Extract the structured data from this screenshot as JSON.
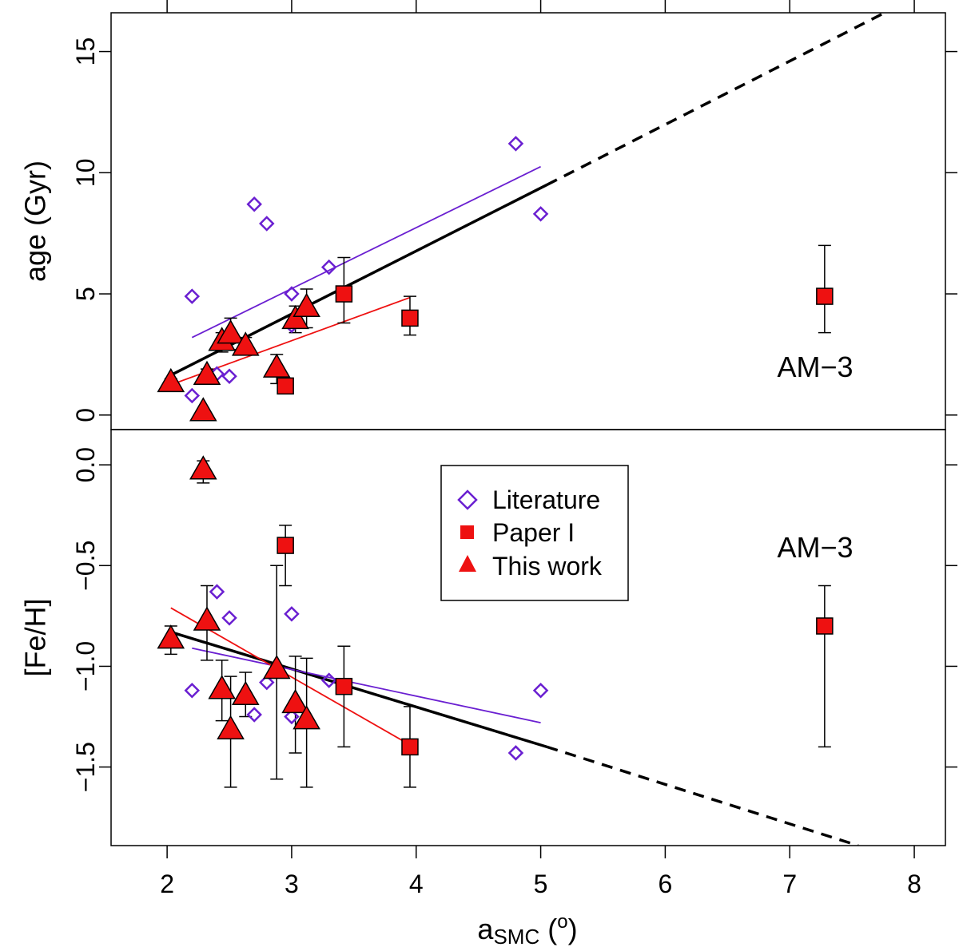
{
  "chart_data": {
    "type": "scatter",
    "x_axis": {
      "label_main": "a",
      "label_sub": "SMC",
      "label_unit_open": " (",
      "label_unit_sup": "o",
      "label_unit_close": ")",
      "range": [
        1.55,
        8.25
      ],
      "ticks": [
        "2",
        "3",
        "4",
        "5",
        "6",
        "7",
        "8"
      ],
      "tick_values": [
        2,
        3,
        4,
        5,
        6,
        7,
        8
      ]
    },
    "panels": [
      {
        "id": "top",
        "ylabel": "age (Gyr)",
        "ylim": [
          -0.6,
          16.6
        ],
        "yticks": [
          "0",
          "5",
          "10",
          "15"
        ],
        "ytick_values": [
          0,
          5,
          10,
          15
        ],
        "annotation": "AM−3",
        "series": [
          {
            "name": "Literature",
            "marker": "diamond",
            "color": "#6a1fd1",
            "points": [
              {
                "x": 2.2,
                "y": 4.9
              },
              {
                "x": 2.2,
                "y": 0.8
              },
              {
                "x": 2.4,
                "y": 1.7
              },
              {
                "x": 2.5,
                "y": 1.6
              },
              {
                "x": 2.7,
                "y": 8.7
              },
              {
                "x": 2.8,
                "y": 7.9
              },
              {
                "x": 3.0,
                "y": 5.0
              },
              {
                "x": 3.0,
                "y": 3.7
              },
              {
                "x": 3.3,
                "y": 6.1
              },
              {
                "x": 4.8,
                "y": 11.2
              },
              {
                "x": 5.0,
                "y": 8.3
              }
            ]
          },
          {
            "name": "Paper I",
            "marker": "square",
            "color": "#ee1111",
            "points": [
              {
                "x": 2.95,
                "y": 1.2,
                "lo": 1.0,
                "hi": 1.5
              },
              {
                "x": 3.42,
                "y": 5.0,
                "lo": 3.8,
                "hi": 6.5
              },
              {
                "x": 3.95,
                "y": 4.0,
                "lo": 3.3,
                "hi": 4.9
              },
              {
                "x": 7.28,
                "y": 4.9,
                "lo": 3.4,
                "hi": 7.0
              }
            ]
          },
          {
            "name": "This work",
            "marker": "triangle",
            "color": "#ee1111",
            "points": [
              {
                "x": 2.03,
                "y": 1.3,
                "lo": 1.1,
                "hi": 1.5
              },
              {
                "x": 2.29,
                "y": 0.1,
                "lo": 0.0,
                "hi": 0.2
              },
              {
                "x": 2.32,
                "y": 1.6,
                "lo": 1.3,
                "hi": 1.9
              },
              {
                "x": 2.44,
                "y": 3.0,
                "lo": 2.6,
                "hi": 3.4
              },
              {
                "x": 2.51,
                "y": 3.3,
                "lo": 2.7,
                "hi": 4.0
              },
              {
                "x": 2.63,
                "y": 2.8,
                "lo": 2.5,
                "hi": 3.2
              },
              {
                "x": 2.88,
                "y": 1.9,
                "lo": 1.3,
                "hi": 2.5
              },
              {
                "x": 3.03,
                "y": 3.9,
                "lo": 3.4,
                "hi": 4.5
              },
              {
                "x": 3.12,
                "y": 4.4,
                "lo": 3.6,
                "hi": 5.2
              }
            ]
          }
        ],
        "fits": [
          {
            "name": "combined fit",
            "color": "#000000",
            "width": 3.5,
            "dashed": false,
            "x": [
              2.05,
              5.05
            ],
            "y": [
              1.7,
              9.5
            ]
          },
          {
            "name": "combined fit extrapolation",
            "color": "#000000",
            "width": 3.5,
            "dashed": true,
            "x": [
              5.05,
              7.8
            ],
            "y": [
              9.5,
              16.7
            ]
          },
          {
            "name": "literature fit",
            "color": "#6a1fd1",
            "width": 1.8,
            "dashed": false,
            "x": [
              2.2,
              5.0
            ],
            "y": [
              3.2,
              10.25
            ]
          },
          {
            "name": "this work fit",
            "color": "#ee1111",
            "width": 1.8,
            "dashed": false,
            "x": [
              2.03,
              3.95
            ],
            "y": [
              1.25,
              4.85
            ]
          }
        ]
      },
      {
        "id": "bottom",
        "ylabel": "[Fe/H]",
        "ylim": [
          -1.89,
          0.175
        ],
        "yticks": [
          "−1.5",
          "−1.0",
          "−0.5",
          "0.0"
        ],
        "ytick_values": [
          -1.5,
          -1.0,
          -0.5,
          0.0
        ],
        "annotation": "AM−3",
        "series": [
          {
            "name": "Literature",
            "marker": "diamond",
            "color": "#6a1fd1",
            "points": [
              {
                "x": 2.2,
                "y": -1.12
              },
              {
                "x": 2.4,
                "y": -0.63
              },
              {
                "x": 2.5,
                "y": -0.76
              },
              {
                "x": 2.7,
                "y": -1.24
              },
              {
                "x": 2.8,
                "y": -1.08
              },
              {
                "x": 3.0,
                "y": -0.74
              },
              {
                "x": 3.0,
                "y": -1.25
              },
              {
                "x": 3.3,
                "y": -1.07
              },
              {
                "x": 4.8,
                "y": -1.43
              },
              {
                "x": 5.0,
                "y": -1.12
              }
            ]
          },
          {
            "name": "Paper I",
            "marker": "square",
            "color": "#ee1111",
            "points": [
              {
                "x": 2.95,
                "y": -0.4,
                "lo": -0.6,
                "hi": -0.3
              },
              {
                "x": 3.42,
                "y": -1.1,
                "lo": -1.4,
                "hi": -0.9
              },
              {
                "x": 3.95,
                "y": -1.4,
                "lo": -1.6,
                "hi": -1.2
              },
              {
                "x": 7.28,
                "y": -0.8,
                "lo": -1.4,
                "hi": -0.6
              }
            ]
          },
          {
            "name": "This work",
            "marker": "triangle",
            "color": "#ee1111",
            "points": [
              {
                "x": 2.03,
                "y": -0.87,
                "lo": -0.94,
                "hi": -0.8
              },
              {
                "x": 2.29,
                "y": -0.03,
                "lo": -0.09,
                "hi": 0.02
              },
              {
                "x": 2.32,
                "y": -0.78,
                "lo": -0.97,
                "hi": -0.6
              },
              {
                "x": 2.44,
                "y": -1.12,
                "lo": -1.27,
                "hi": -0.97
              },
              {
                "x": 2.51,
                "y": -1.32,
                "lo": -1.6,
                "hi": -1.05
              },
              {
                "x": 2.63,
                "y": -1.15,
                "lo": -1.25,
                "hi": -1.03
              },
              {
                "x": 2.88,
                "y": -1.02,
                "lo": -1.56,
                "hi": -0.5
              },
              {
                "x": 3.03,
                "y": -1.19,
                "lo": -1.43,
                "hi": -0.95
              },
              {
                "x": 3.12,
                "y": -1.27,
                "lo": -1.6,
                "hi": -0.96
              }
            ]
          }
        ],
        "fits": [
          {
            "name": "combined fit",
            "color": "#000000",
            "width": 3.5,
            "dashed": false,
            "x": [
              2.03,
              5.05
            ],
            "y": [
              -0.83,
              -1.4
            ]
          },
          {
            "name": "combined fit extrapolation",
            "color": "#000000",
            "width": 3.5,
            "dashed": true,
            "x": [
              5.05,
              7.55
            ],
            "y": [
              -1.4,
              -1.89
            ]
          },
          {
            "name": "literature fit",
            "color": "#6a1fd1",
            "width": 1.8,
            "dashed": false,
            "x": [
              2.2,
              5.0
            ],
            "y": [
              -0.91,
              -1.28
            ]
          },
          {
            "name": "this work fit",
            "color": "#ee1111",
            "width": 1.8,
            "dashed": false,
            "x": [
              2.03,
              3.95
            ],
            "y": [
              -0.71,
              -1.39
            ]
          }
        ]
      }
    ],
    "legend": {
      "placement": "bottom panel, upper center",
      "entries": [
        {
          "label": "Literature",
          "marker": "diamond",
          "color": "#6a1fd1"
        },
        {
          "label": "Paper I",
          "marker": "square",
          "color": "#ee1111"
        },
        {
          "label": "This work",
          "marker": "triangle",
          "color": "#ee1111"
        }
      ]
    }
  }
}
